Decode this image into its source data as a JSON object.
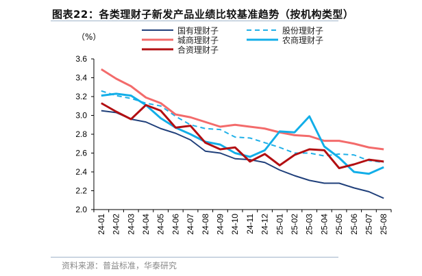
{
  "title": "图表22：各类理财子新发产品业绩比较基准趋势（按机构类型）",
  "source": "资料来源：普益标准，华泰研究",
  "chart_data": {
    "type": "line",
    "ylabel": "（%）",
    "ylim": [
      2.0,
      3.6
    ],
    "yticks": [
      "2.0",
      "2.2",
      "2.4",
      "2.6",
      "2.8",
      "3.0",
      "3.2",
      "3.4",
      "3.6"
    ],
    "categories": [
      "24-01",
      "24-02",
      "24-03",
      "24-04",
      "24-05",
      "24-06",
      "24-07",
      "24-08",
      "24-09",
      "24-10",
      "24-11",
      "24-12",
      "25-01",
      "25-02",
      "25-03",
      "25-04",
      "25-05",
      "25-06",
      "25-07",
      "25-08"
    ],
    "legend_position": "top",
    "series": [
      {
        "name": "国有理财子",
        "color": "#1f3f7a",
        "dash": false,
        "width": 2,
        "values": [
          3.05,
          3.03,
          2.96,
          2.93,
          2.86,
          2.81,
          2.74,
          2.62,
          2.6,
          2.54,
          2.53,
          2.5,
          2.42,
          2.36,
          2.31,
          2.28,
          2.28,
          2.23,
          2.19,
          2.12
        ]
      },
      {
        "name": "股份理财子",
        "color": "#1fb0e8",
        "dash": true,
        "width": 2,
        "values": [
          3.26,
          3.21,
          3.18,
          3.13,
          3.1,
          2.99,
          2.9,
          2.86,
          2.85,
          2.77,
          2.76,
          2.71,
          2.66,
          2.6,
          2.6,
          2.57,
          2.59,
          2.58,
          2.52,
          2.5
        ]
      },
      {
        "name": "城商理财子",
        "color": "#f36b6b",
        "dash": false,
        "width": 3,
        "values": [
          3.49,
          3.39,
          3.31,
          3.19,
          3.13,
          3.01,
          2.98,
          2.93,
          2.88,
          2.9,
          2.88,
          2.86,
          2.82,
          2.79,
          2.78,
          2.73,
          2.73,
          2.7,
          2.66,
          2.64
        ]
      },
      {
        "name": "农商理财子",
        "color": "#12aee8",
        "dash": false,
        "width": 3,
        "values": [
          3.21,
          3.23,
          3.21,
          3.11,
          2.97,
          2.87,
          2.8,
          2.72,
          2.69,
          2.6,
          2.56,
          2.63,
          2.83,
          2.82,
          2.99,
          2.67,
          2.55,
          2.4,
          2.38,
          2.45
        ]
      },
      {
        "name": "合资理财子",
        "color": "#b20f12",
        "dash": false,
        "width": 3,
        "values": [
          3.13,
          3.04,
          2.96,
          3.11,
          3.05,
          2.87,
          2.89,
          2.71,
          2.64,
          2.66,
          2.51,
          2.59,
          2.47,
          2.58,
          2.64,
          2.63,
          2.44,
          2.48,
          2.53,
          2.51
        ]
      }
    ]
  }
}
